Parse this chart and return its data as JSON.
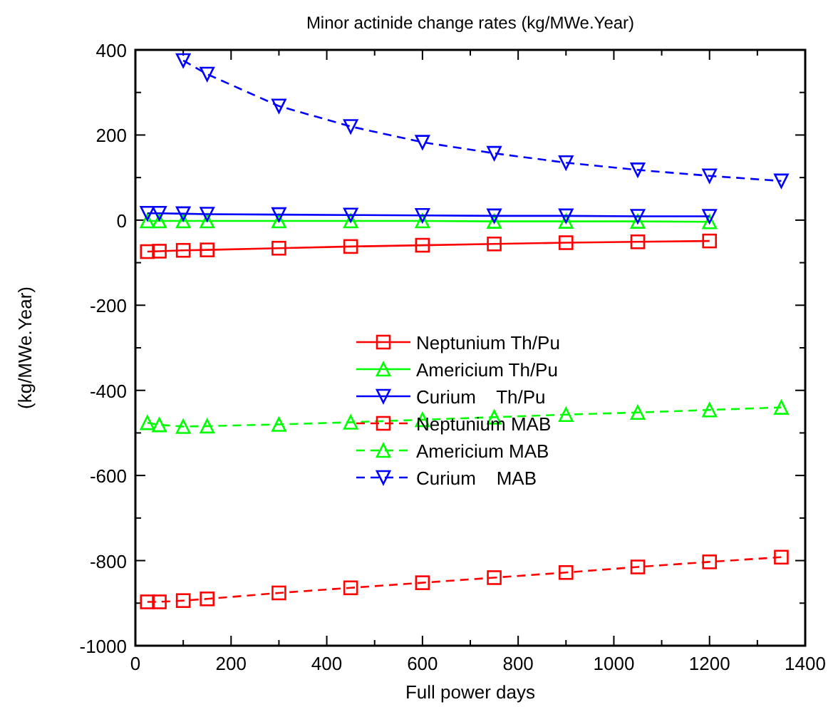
{
  "chart_data": {
    "type": "line",
    "title": "Minor actinide change rates (kg/MWe.Year)",
    "xlabel": "Full power days",
    "ylabel": "(kg/MWe.Year)",
    "xlim": [
      0,
      1400
    ],
    "ylim": [
      -1000,
      400
    ],
    "xticks": [
      0,
      {
        "value": 100,
        "label": null
      },
      200,
      {
        "value": 300,
        "label": null
      },
      400,
      {
        "value": 500,
        "label": null
      },
      600,
      {
        "value": 700,
        "label": null
      },
      800,
      {
        "value": 900,
        "label": null
      },
      1000,
      {
        "value": 1100,
        "label": null
      },
      1200,
      {
        "value": 1300,
        "label": null
      },
      1400
    ],
    "yticks": [
      -1000,
      {
        "value": -900,
        "label": null
      },
      -800,
      {
        "value": -700,
        "label": null
      },
      -600,
      {
        "value": -500,
        "label": null
      },
      -400,
      {
        "value": -300,
        "label": null
      },
      -200,
      {
        "value": -100,
        "label": null
      },
      0,
      {
        "value": 100,
        "label": null
      },
      200,
      {
        "value": 300,
        "label": null
      },
      400
    ],
    "grid": false,
    "legend": "center",
    "series": [
      {
        "name": "Neptunium Th/Pu",
        "color": "#ff0000",
        "marker": "square",
        "line_style": "solid",
        "x": [
          25,
          50,
          100,
          150,
          300,
          450,
          600,
          750,
          900,
          1050,
          1200
        ],
        "values": [
          -74,
          -73,
          -71,
          -70,
          -66,
          -62,
          -59,
          -56,
          -53,
          -51,
          -49
        ]
      },
      {
        "name": "Americium Th/Pu",
        "color": "#00ff00",
        "marker": "triangle",
        "line_style": "solid",
        "x": [
          25,
          50,
          100,
          150,
          300,
          450,
          600,
          750,
          900,
          1050,
          1200
        ],
        "values": [
          -2,
          -2,
          -2,
          -2,
          -2,
          -2,
          -2,
          -3,
          -3,
          -3,
          -4
        ]
      },
      {
        "name": "Curium    Th/Pu",
        "color": "#0000ff",
        "marker": "triangle-down",
        "line_style": "solid",
        "x": [
          25,
          50,
          100,
          150,
          300,
          450,
          600,
          750,
          900,
          1050,
          1200
        ],
        "values": [
          16,
          16,
          15,
          14,
          13,
          12,
          11,
          10,
          10,
          9,
          9
        ]
      },
      {
        "name": "Neptunium MAB",
        "color": "#ff0000",
        "marker": "square",
        "line_style": "dashed",
        "x": [
          25,
          50,
          100,
          150,
          300,
          450,
          600,
          750,
          900,
          1050,
          1200,
          1350
        ],
        "values": [
          -897,
          -897,
          -894,
          -890,
          -876,
          -864,
          -852,
          -840,
          -828,
          -815,
          -803,
          -792
        ]
      },
      {
        "name": "Americium MAB",
        "color": "#00ff00",
        "marker": "triangle",
        "line_style": "dashed",
        "x": [
          25,
          50,
          100,
          150,
          300,
          450,
          600,
          750,
          900,
          1050,
          1200,
          1350
        ],
        "values": [
          -476,
          -481,
          -485,
          -484,
          -480,
          -475,
          -469,
          -463,
          -457,
          -452,
          -446,
          -440
        ]
      },
      {
        "name": "Curium    MAB",
        "color": "#0000ff",
        "marker": "triangle-down",
        "line_style": "dashed",
        "x": [
          100,
          150,
          300,
          450,
          600,
          750,
          900,
          1050,
          1200,
          1350
        ],
        "values": [
          375,
          343,
          268,
          220,
          183,
          157,
          135,
          118,
          104,
          92
        ]
      }
    ]
  }
}
